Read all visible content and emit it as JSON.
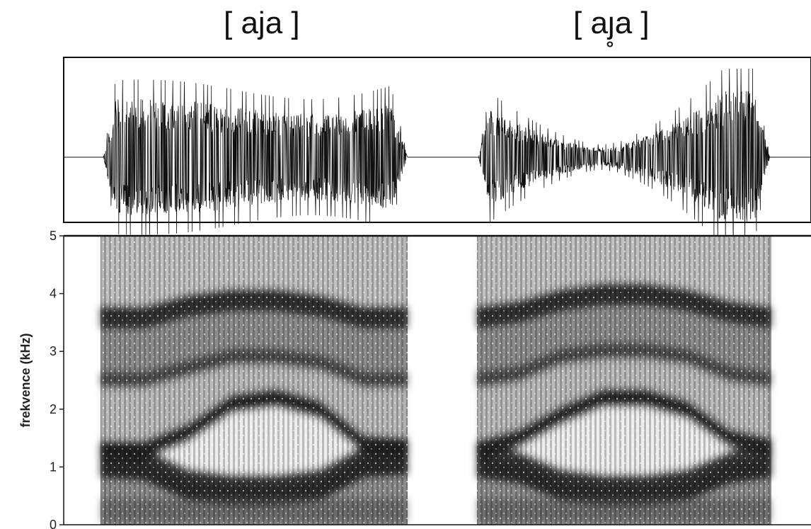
{
  "chart_data": {
    "type": "heatmap",
    "panels": [
      {
        "title": "[ aja ]"
      },
      {
        "title": "[ aȷ̥a ]"
      }
    ],
    "ylabel": "frekvence (kHz)",
    "yticks": [
      "0",
      "1",
      "2",
      "3",
      "4",
      "5"
    ],
    "ylim": [
      0,
      5
    ],
    "waveform": {
      "visible": true
    },
    "formants": [
      {
        "panel": 0,
        "F1": [
          1.1,
          1.05,
          0.7,
          0.6,
          0.6,
          0.7,
          1.1,
          1.15
        ],
        "F2": [
          1.3,
          1.3,
          1.6,
          2.1,
          2.2,
          2.0,
          1.4,
          1.35
        ],
        "F3": [
          2.5,
          2.5,
          2.7,
          2.9,
          2.9,
          2.8,
          2.5,
          2.5
        ],
        "F4": [
          3.6,
          3.6,
          3.8,
          3.9,
          3.9,
          3.8,
          3.6,
          3.6
        ]
      },
      {
        "panel": 1,
        "F1": [
          1.1,
          1.0,
          0.7,
          0.6,
          0.6,
          0.7,
          1.0,
          1.1
        ],
        "F2": [
          1.3,
          1.5,
          1.9,
          2.2,
          2.2,
          2.0,
          1.5,
          1.35
        ],
        "F3": [
          2.5,
          2.6,
          2.9,
          3.0,
          3.0,
          2.9,
          2.6,
          2.5
        ],
        "F4": [
          3.6,
          3.7,
          3.9,
          4.0,
          4.0,
          3.9,
          3.7,
          3.6
        ]
      }
    ]
  }
}
